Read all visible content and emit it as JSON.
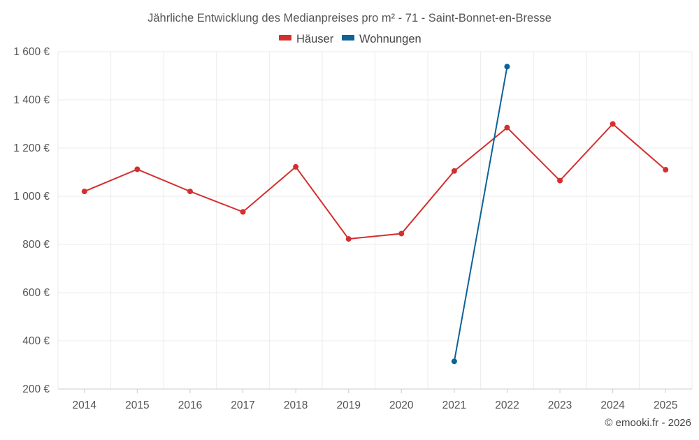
{
  "chart_data": {
    "type": "line",
    "title": "Jährliche Entwicklung des Medianpreises pro m² - 71 - Saint-Bonnet-en-Bresse",
    "xlabel": "",
    "ylabel": "",
    "categories": [
      "2014",
      "2015",
      "2016",
      "2017",
      "2018",
      "2019",
      "2020",
      "2021",
      "2022",
      "2023",
      "2024",
      "2025"
    ],
    "series": [
      {
        "name": "Häuser",
        "color": "#d32f2f",
        "values": [
          1020,
          1112,
          1020,
          935,
          1122,
          823,
          845,
          1105,
          1285,
          1065,
          1300,
          1110
        ]
      },
      {
        "name": "Wohnungen",
        "color": "#0d6296",
        "values": [
          null,
          null,
          null,
          null,
          null,
          null,
          null,
          315,
          1538,
          null,
          null,
          null
        ]
      }
    ],
    "ylim": [
      200,
      1600
    ],
    "yticks": [
      200,
      400,
      600,
      800,
      1000,
      1200,
      1400,
      1600
    ],
    "ytick_labels": [
      "200 €",
      "400 €",
      "600 €",
      "800 €",
      "1 000 €",
      "1 200 €",
      "1 400 €",
      "1 600 €"
    ],
    "grid": true,
    "legend_position": "top-center"
  },
  "credit": "© emooki.fr - 2026"
}
